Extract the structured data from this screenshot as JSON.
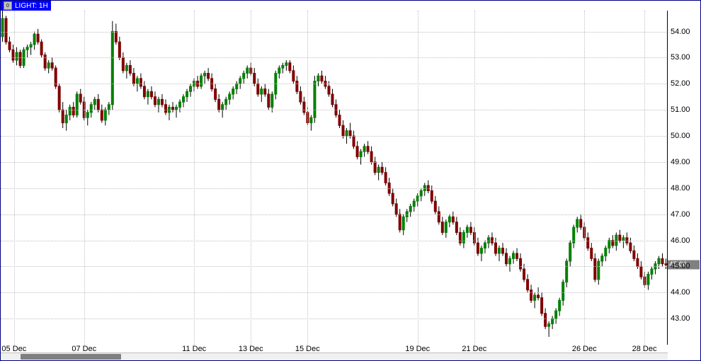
{
  "title": {
    "icon_label": "0",
    "text": "LIGHT: 1H"
  },
  "chart": {
    "type": "candlestick",
    "background_color": "#ffffff",
    "grid_color": "#c0c0c0",
    "border_color": "#000080",
    "bull_color": "#008000",
    "bear_color": "#800000",
    "wick_color": "#000000",
    "y_axis": {
      "min": 42.0,
      "max": 54.8,
      "ticks": [
        43.0,
        44.0,
        45.0,
        46.0,
        47.0,
        48.0,
        49.0,
        50.0,
        51.0,
        52.0,
        53.0,
        54.0
      ],
      "tick_labels": [
        "43.00",
        "44.00",
        "45.00",
        "46.00",
        "47.00",
        "48.00",
        "49.00",
        "50.00",
        "51.00",
        "52.00",
        "53.00",
        "54.00"
      ],
      "label_fontsize": 11,
      "label_color": "#000000"
    },
    "x_axis": {
      "ticks": [
        0.02,
        0.125,
        0.29,
        0.375,
        0.46,
        0.625,
        0.71,
        0.875,
        0.965
      ],
      "tick_labels": [
        "05 Dec",
        "07 Dec",
        "11 Dec",
        "13 Dec",
        "15 Dec",
        "19 Dec",
        "21 Dec",
        "26 Dec",
        "28 Dec"
      ],
      "label_fontsize": 11,
      "label_color": "#000000"
    },
    "last_price": {
      "value": 45.06,
      "label": "45.06",
      "bg_color": "#808080",
      "text_color": "#ffffff"
    },
    "candles": [
      {
        "o": 53.8,
        "h": 54.8,
        "l": 53.6,
        "c": 54.5
      },
      {
        "o": 54.5,
        "h": 54.6,
        "l": 53.5,
        "c": 53.6
      },
      {
        "o": 53.6,
        "h": 53.8,
        "l": 53.2,
        "c": 53.3
      },
      {
        "o": 53.3,
        "h": 53.5,
        "l": 52.8,
        "c": 52.9
      },
      {
        "o": 52.9,
        "h": 53.4,
        "l": 52.7,
        "c": 53.2
      },
      {
        "o": 53.2,
        "h": 53.3,
        "l": 52.6,
        "c": 52.7
      },
      {
        "o": 52.7,
        "h": 53.4,
        "l": 52.6,
        "c": 53.3
      },
      {
        "o": 53.3,
        "h": 53.5,
        "l": 53.0,
        "c": 53.4
      },
      {
        "o": 53.4,
        "h": 53.6,
        "l": 53.1,
        "c": 53.5
      },
      {
        "o": 53.5,
        "h": 54.0,
        "l": 53.3,
        "c": 53.9
      },
      {
        "o": 53.9,
        "h": 54.1,
        "l": 53.5,
        "c": 53.6
      },
      {
        "o": 53.6,
        "h": 53.7,
        "l": 53.0,
        "c": 53.1
      },
      {
        "o": 53.1,
        "h": 53.2,
        "l": 52.5,
        "c": 52.6
      },
      {
        "o": 52.6,
        "h": 52.9,
        "l": 52.4,
        "c": 52.8
      },
      {
        "o": 52.8,
        "h": 53.0,
        "l": 52.5,
        "c": 52.6
      },
      {
        "o": 52.6,
        "h": 52.7,
        "l": 51.8,
        "c": 51.9
      },
      {
        "o": 51.9,
        "h": 52.0,
        "l": 50.9,
        "c": 51.0
      },
      {
        "o": 51.0,
        "h": 51.3,
        "l": 50.3,
        "c": 50.5
      },
      {
        "o": 50.5,
        "h": 51.0,
        "l": 50.2,
        "c": 50.8
      },
      {
        "o": 50.8,
        "h": 51.2,
        "l": 50.6,
        "c": 51.1
      },
      {
        "o": 51.1,
        "h": 51.3,
        "l": 50.7,
        "c": 50.8
      },
      {
        "o": 50.8,
        "h": 51.7,
        "l": 50.7,
        "c": 51.6
      },
      {
        "o": 51.6,
        "h": 51.8,
        "l": 51.2,
        "c": 51.3
      },
      {
        "o": 51.3,
        "h": 51.5,
        "l": 50.6,
        "c": 50.7
      },
      {
        "o": 50.7,
        "h": 51.0,
        "l": 50.4,
        "c": 50.9
      },
      {
        "o": 50.9,
        "h": 51.3,
        "l": 50.7,
        "c": 51.2
      },
      {
        "o": 51.2,
        "h": 51.5,
        "l": 51.0,
        "c": 51.4
      },
      {
        "o": 51.4,
        "h": 51.6,
        "l": 50.9,
        "c": 51.0
      },
      {
        "o": 51.0,
        "h": 51.2,
        "l": 50.5,
        "c": 50.6
      },
      {
        "o": 50.6,
        "h": 51.1,
        "l": 50.4,
        "c": 51.0
      },
      {
        "o": 51.0,
        "h": 51.3,
        "l": 50.8,
        "c": 51.2
      },
      {
        "o": 51.2,
        "h": 54.4,
        "l": 51.0,
        "c": 54.0
      },
      {
        "o": 54.0,
        "h": 54.3,
        "l": 53.5,
        "c": 53.6
      },
      {
        "o": 53.6,
        "h": 53.8,
        "l": 52.9,
        "c": 53.0
      },
      {
        "o": 53.0,
        "h": 53.2,
        "l": 52.4,
        "c": 52.5
      },
      {
        "o": 52.5,
        "h": 52.8,
        "l": 52.2,
        "c": 52.7
      },
      {
        "o": 52.7,
        "h": 52.9,
        "l": 52.3,
        "c": 52.4
      },
      {
        "o": 52.4,
        "h": 52.6,
        "l": 51.9,
        "c": 52.0
      },
      {
        "o": 52.0,
        "h": 52.3,
        "l": 51.7,
        "c": 52.2
      },
      {
        "o": 52.2,
        "h": 52.4,
        "l": 51.8,
        "c": 51.9
      },
      {
        "o": 51.9,
        "h": 52.1,
        "l": 51.4,
        "c": 51.5
      },
      {
        "o": 51.5,
        "h": 51.8,
        "l": 51.2,
        "c": 51.7
      },
      {
        "o": 51.7,
        "h": 51.9,
        "l": 51.4,
        "c": 51.5
      },
      {
        "o": 51.5,
        "h": 51.7,
        "l": 51.1,
        "c": 51.2
      },
      {
        "o": 51.2,
        "h": 51.5,
        "l": 50.9,
        "c": 51.4
      },
      {
        "o": 51.4,
        "h": 51.6,
        "l": 51.1,
        "c": 51.2
      },
      {
        "o": 51.2,
        "h": 51.4,
        "l": 50.8,
        "c": 50.9
      },
      {
        "o": 50.9,
        "h": 51.2,
        "l": 50.6,
        "c": 51.1
      },
      {
        "o": 51.1,
        "h": 51.3,
        "l": 50.9,
        "c": 51.0
      },
      {
        "o": 51.0,
        "h": 51.2,
        "l": 50.7,
        "c": 51.1
      },
      {
        "o": 51.1,
        "h": 51.4,
        "l": 50.9,
        "c": 51.3
      },
      {
        "o": 51.3,
        "h": 51.6,
        "l": 51.1,
        "c": 51.5
      },
      {
        "o": 51.5,
        "h": 51.8,
        "l": 51.3,
        "c": 51.7
      },
      {
        "o": 51.7,
        "h": 52.0,
        "l": 51.5,
        "c": 51.9
      },
      {
        "o": 51.9,
        "h": 52.2,
        "l": 51.7,
        "c": 52.1
      },
      {
        "o": 52.1,
        "h": 52.3,
        "l": 51.8,
        "c": 51.9
      },
      {
        "o": 51.9,
        "h": 52.4,
        "l": 51.8,
        "c": 52.3
      },
      {
        "o": 52.3,
        "h": 52.5,
        "l": 52.0,
        "c": 52.4
      },
      {
        "o": 52.4,
        "h": 52.6,
        "l": 52.1,
        "c": 52.2
      },
      {
        "o": 52.2,
        "h": 52.4,
        "l": 51.7,
        "c": 51.8
      },
      {
        "o": 51.8,
        "h": 52.0,
        "l": 51.3,
        "c": 51.4
      },
      {
        "o": 51.4,
        "h": 51.6,
        "l": 50.9,
        "c": 51.0
      },
      {
        "o": 51.0,
        "h": 51.3,
        "l": 50.7,
        "c": 51.2
      },
      {
        "o": 51.2,
        "h": 51.5,
        "l": 51.0,
        "c": 51.4
      },
      {
        "o": 51.4,
        "h": 51.7,
        "l": 51.2,
        "c": 51.6
      },
      {
        "o": 51.6,
        "h": 51.9,
        "l": 51.4,
        "c": 51.8
      },
      {
        "o": 51.8,
        "h": 52.1,
        "l": 51.6,
        "c": 52.0
      },
      {
        "o": 52.0,
        "h": 52.3,
        "l": 51.8,
        "c": 52.2
      },
      {
        "o": 52.2,
        "h": 52.5,
        "l": 52.0,
        "c": 52.4
      },
      {
        "o": 52.4,
        "h": 52.7,
        "l": 52.2,
        "c": 52.6
      },
      {
        "o": 52.6,
        "h": 52.8,
        "l": 52.3,
        "c": 52.4
      },
      {
        "o": 52.4,
        "h": 52.6,
        "l": 51.9,
        "c": 52.0
      },
      {
        "o": 52.0,
        "h": 52.2,
        "l": 51.5,
        "c": 51.6
      },
      {
        "o": 51.6,
        "h": 51.9,
        "l": 51.3,
        "c": 51.8
      },
      {
        "o": 51.8,
        "h": 52.0,
        "l": 51.5,
        "c": 51.6
      },
      {
        "o": 51.6,
        "h": 51.8,
        "l": 51.0,
        "c": 51.1
      },
      {
        "o": 51.1,
        "h": 51.7,
        "l": 50.9,
        "c": 51.6
      },
      {
        "o": 51.6,
        "h": 52.5,
        "l": 51.4,
        "c": 52.4
      },
      {
        "o": 52.4,
        "h": 52.7,
        "l": 52.2,
        "c": 52.6
      },
      {
        "o": 52.6,
        "h": 52.8,
        "l": 52.4,
        "c": 52.7
      },
      {
        "o": 52.7,
        "h": 52.9,
        "l": 52.5,
        "c": 52.8
      },
      {
        "o": 52.8,
        "h": 52.9,
        "l": 52.4,
        "c": 52.5
      },
      {
        "o": 52.5,
        "h": 52.7,
        "l": 52.0,
        "c": 52.1
      },
      {
        "o": 52.1,
        "h": 52.3,
        "l": 51.6,
        "c": 51.7
      },
      {
        "o": 51.7,
        "h": 51.9,
        "l": 51.2,
        "c": 51.3
      },
      {
        "o": 51.3,
        "h": 51.5,
        "l": 50.8,
        "c": 50.9
      },
      {
        "o": 50.9,
        "h": 51.1,
        "l": 50.4,
        "c": 50.5
      },
      {
        "o": 50.5,
        "h": 50.8,
        "l": 50.2,
        "c": 50.7
      },
      {
        "o": 50.7,
        "h": 52.3,
        "l": 50.5,
        "c": 52.1
      },
      {
        "o": 52.1,
        "h": 52.4,
        "l": 51.9,
        "c": 52.3
      },
      {
        "o": 52.3,
        "h": 52.5,
        "l": 52.0,
        "c": 52.1
      },
      {
        "o": 52.1,
        "h": 52.3,
        "l": 51.8,
        "c": 51.9
      },
      {
        "o": 51.9,
        "h": 52.1,
        "l": 51.5,
        "c": 51.6
      },
      {
        "o": 51.6,
        "h": 51.8,
        "l": 51.1,
        "c": 51.2
      },
      {
        "o": 51.2,
        "h": 51.4,
        "l": 50.7,
        "c": 50.8
      },
      {
        "o": 50.8,
        "h": 51.0,
        "l": 50.3,
        "c": 50.4
      },
      {
        "o": 50.4,
        "h": 50.6,
        "l": 49.9,
        "c": 50.0
      },
      {
        "o": 50.0,
        "h": 50.3,
        "l": 49.7,
        "c": 50.2
      },
      {
        "o": 50.2,
        "h": 50.5,
        "l": 49.9,
        "c": 50.0
      },
      {
        "o": 50.0,
        "h": 50.2,
        "l": 49.5,
        "c": 49.6
      },
      {
        "o": 49.6,
        "h": 49.8,
        "l": 49.1,
        "c": 49.2
      },
      {
        "o": 49.2,
        "h": 49.5,
        "l": 48.9,
        "c": 49.4
      },
      {
        "o": 49.4,
        "h": 49.7,
        "l": 49.2,
        "c": 49.6
      },
      {
        "o": 49.6,
        "h": 49.8,
        "l": 49.3,
        "c": 49.4
      },
      {
        "o": 49.4,
        "h": 49.6,
        "l": 48.9,
        "c": 49.0
      },
      {
        "o": 49.0,
        "h": 49.2,
        "l": 48.5,
        "c": 48.6
      },
      {
        "o": 48.6,
        "h": 48.9,
        "l": 48.3,
        "c": 48.8
      },
      {
        "o": 48.8,
        "h": 49.0,
        "l": 48.5,
        "c": 48.6
      },
      {
        "o": 48.6,
        "h": 48.8,
        "l": 48.1,
        "c": 48.2
      },
      {
        "o": 48.2,
        "h": 48.4,
        "l": 47.7,
        "c": 47.8
      },
      {
        "o": 47.8,
        "h": 48.0,
        "l": 47.3,
        "c": 47.4
      },
      {
        "o": 47.4,
        "h": 47.6,
        "l": 46.9,
        "c": 47.0
      },
      {
        "o": 47.0,
        "h": 47.2,
        "l": 46.3,
        "c": 46.4
      },
      {
        "o": 46.4,
        "h": 47.0,
        "l": 46.2,
        "c": 46.9
      },
      {
        "o": 46.9,
        "h": 47.2,
        "l": 46.7,
        "c": 47.1
      },
      {
        "o": 47.1,
        "h": 47.4,
        "l": 46.9,
        "c": 47.3
      },
      {
        "o": 47.3,
        "h": 47.6,
        "l": 47.1,
        "c": 47.5
      },
      {
        "o": 47.5,
        "h": 47.8,
        "l": 47.3,
        "c": 47.7
      },
      {
        "o": 47.7,
        "h": 48.0,
        "l": 47.5,
        "c": 47.9
      },
      {
        "o": 47.9,
        "h": 48.2,
        "l": 47.7,
        "c": 48.1
      },
      {
        "o": 48.1,
        "h": 48.3,
        "l": 47.8,
        "c": 47.9
      },
      {
        "o": 47.9,
        "h": 48.1,
        "l": 47.4,
        "c": 47.5
      },
      {
        "o": 47.5,
        "h": 47.7,
        "l": 47.0,
        "c": 47.1
      },
      {
        "o": 47.1,
        "h": 47.3,
        "l": 46.6,
        "c": 46.7
      },
      {
        "o": 46.7,
        "h": 46.9,
        "l": 46.2,
        "c": 46.3
      },
      {
        "o": 46.3,
        "h": 46.8,
        "l": 46.1,
        "c": 46.7
      },
      {
        "o": 46.7,
        "h": 47.0,
        "l": 46.5,
        "c": 46.9
      },
      {
        "o": 46.9,
        "h": 47.1,
        "l": 46.6,
        "c": 46.7
      },
      {
        "o": 46.7,
        "h": 46.9,
        "l": 46.2,
        "c": 46.3
      },
      {
        "o": 46.3,
        "h": 46.5,
        "l": 45.8,
        "c": 45.9
      },
      {
        "o": 45.9,
        "h": 46.4,
        "l": 45.7,
        "c": 46.3
      },
      {
        "o": 46.3,
        "h": 46.6,
        "l": 46.1,
        "c": 46.5
      },
      {
        "o": 46.5,
        "h": 46.7,
        "l": 46.2,
        "c": 46.3
      },
      {
        "o": 46.3,
        "h": 46.5,
        "l": 45.8,
        "c": 45.9
      },
      {
        "o": 45.9,
        "h": 46.1,
        "l": 45.4,
        "c": 45.5
      },
      {
        "o": 45.5,
        "h": 45.8,
        "l": 45.2,
        "c": 45.7
      },
      {
        "o": 45.7,
        "h": 46.0,
        "l": 45.5,
        "c": 45.9
      },
      {
        "o": 45.9,
        "h": 46.2,
        "l": 45.7,
        "c": 46.1
      },
      {
        "o": 46.1,
        "h": 46.3,
        "l": 45.8,
        "c": 45.9
      },
      {
        "o": 45.9,
        "h": 46.1,
        "l": 45.4,
        "c": 45.5
      },
      {
        "o": 45.5,
        "h": 45.8,
        "l": 45.2,
        "c": 45.7
      },
      {
        "o": 45.7,
        "h": 45.9,
        "l": 45.4,
        "c": 45.5
      },
      {
        "o": 45.5,
        "h": 45.7,
        "l": 45.0,
        "c": 45.1
      },
      {
        "o": 45.1,
        "h": 45.4,
        "l": 44.8,
        "c": 45.3
      },
      {
        "o": 45.3,
        "h": 45.6,
        "l": 45.1,
        "c": 45.5
      },
      {
        "o": 45.5,
        "h": 45.7,
        "l": 45.2,
        "c": 45.3
      },
      {
        "o": 45.3,
        "h": 45.5,
        "l": 44.8,
        "c": 44.9
      },
      {
        "o": 44.9,
        "h": 45.1,
        "l": 44.4,
        "c": 44.5
      },
      {
        "o": 44.5,
        "h": 44.7,
        "l": 44.0,
        "c": 44.1
      },
      {
        "o": 44.1,
        "h": 44.3,
        "l": 43.6,
        "c": 43.7
      },
      {
        "o": 43.7,
        "h": 44.0,
        "l": 43.4,
        "c": 43.9
      },
      {
        "o": 43.9,
        "h": 44.2,
        "l": 43.7,
        "c": 43.8
      },
      {
        "o": 43.8,
        "h": 44.0,
        "l": 43.1,
        "c": 43.2
      },
      {
        "o": 43.2,
        "h": 43.4,
        "l": 42.6,
        "c": 42.7
      },
      {
        "o": 42.7,
        "h": 42.9,
        "l": 42.3,
        "c": 42.8
      },
      {
        "o": 42.8,
        "h": 43.1,
        "l": 42.6,
        "c": 43.0
      },
      {
        "o": 43.0,
        "h": 43.4,
        "l": 42.8,
        "c": 43.3
      },
      {
        "o": 43.3,
        "h": 43.8,
        "l": 43.1,
        "c": 43.7
      },
      {
        "o": 43.7,
        "h": 44.5,
        "l": 43.5,
        "c": 44.4
      },
      {
        "o": 44.4,
        "h": 45.3,
        "l": 44.2,
        "c": 45.2
      },
      {
        "o": 45.2,
        "h": 46.0,
        "l": 45.0,
        "c": 45.9
      },
      {
        "o": 45.9,
        "h": 46.6,
        "l": 45.7,
        "c": 46.5
      },
      {
        "o": 46.5,
        "h": 46.9,
        "l": 46.3,
        "c": 46.8
      },
      {
        "o": 46.8,
        "h": 47.0,
        "l": 46.4,
        "c": 46.5
      },
      {
        "o": 46.5,
        "h": 46.7,
        "l": 46.0,
        "c": 46.1
      },
      {
        "o": 46.1,
        "h": 46.3,
        "l": 45.6,
        "c": 45.7
      },
      {
        "o": 45.7,
        "h": 45.9,
        "l": 45.2,
        "c": 45.3
      },
      {
        "o": 45.3,
        "h": 45.5,
        "l": 44.4,
        "c": 44.5
      },
      {
        "o": 44.5,
        "h": 45.3,
        "l": 44.3,
        "c": 45.2
      },
      {
        "o": 45.2,
        "h": 45.5,
        "l": 45.0,
        "c": 45.4
      },
      {
        "o": 45.4,
        "h": 45.8,
        "l": 45.2,
        "c": 45.7
      },
      {
        "o": 45.7,
        "h": 46.1,
        "l": 45.5,
        "c": 46.0
      },
      {
        "o": 46.0,
        "h": 46.2,
        "l": 45.7,
        "c": 45.8
      },
      {
        "o": 45.8,
        "h": 46.3,
        "l": 45.6,
        "c": 46.2
      },
      {
        "o": 46.2,
        "h": 46.4,
        "l": 45.9,
        "c": 46.0
      },
      {
        "o": 46.0,
        "h": 46.2,
        "l": 45.7,
        "c": 46.1
      },
      {
        "o": 46.1,
        "h": 46.3,
        "l": 45.8,
        "c": 45.9
      },
      {
        "o": 45.9,
        "h": 46.1,
        "l": 45.5,
        "c": 45.6
      },
      {
        "o": 45.6,
        "h": 45.8,
        "l": 45.2,
        "c": 45.3
      },
      {
        "o": 45.3,
        "h": 45.5,
        "l": 44.9,
        "c": 45.0
      },
      {
        "o": 45.0,
        "h": 45.2,
        "l": 44.5,
        "c": 44.6
      },
      {
        "o": 44.6,
        "h": 44.8,
        "l": 44.2,
        "c": 44.3
      },
      {
        "o": 44.3,
        "h": 44.8,
        "l": 44.1,
        "c": 44.7
      },
      {
        "o": 44.7,
        "h": 45.0,
        "l": 44.5,
        "c": 44.9
      },
      {
        "o": 44.9,
        "h": 45.2,
        "l": 44.7,
        "c": 45.1
      },
      {
        "o": 45.1,
        "h": 45.4,
        "l": 44.9,
        "c": 45.3
      },
      {
        "o": 45.3,
        "h": 45.5,
        "l": 45.0,
        "c": 45.1
      },
      {
        "o": 45.1,
        "h": 45.3,
        "l": 44.9,
        "c": 45.06
      }
    ]
  },
  "scrollbar": {
    "thumb_left_pct": 3,
    "thumb_width_pct": 15,
    "track_color": "#f0f0f0",
    "thumb_color": "#808080"
  }
}
